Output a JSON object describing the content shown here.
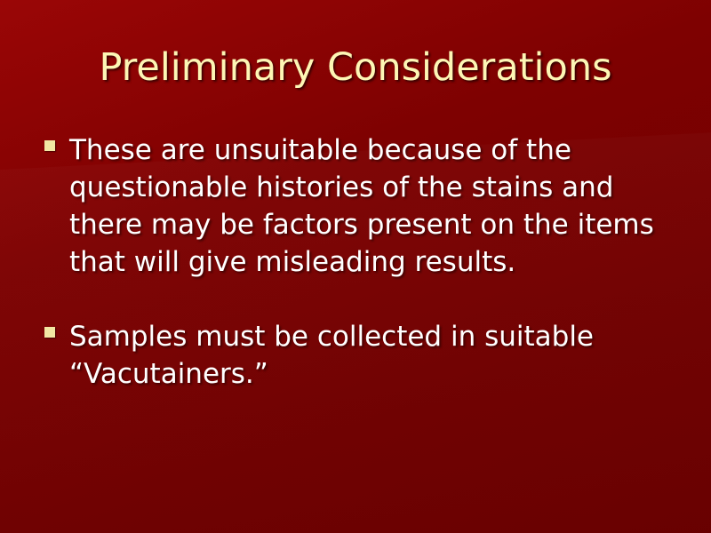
{
  "slide": {
    "title": "Preliminary Considerations",
    "bullets": [
      "These are unsuitable because of the questionable histories of the stains and there may be factors present on the items that will give misleading results.",
      "Samples must be collected in suitable “Vacutainers.”"
    ]
  },
  "colors": {
    "background": "#7a0000",
    "title_text": "#fdf6b5",
    "body_text": "#ffffff",
    "bullet_marker": "#f2e7a3"
  },
  "icons": {
    "bullet_marker": "square-bullet-icon"
  }
}
